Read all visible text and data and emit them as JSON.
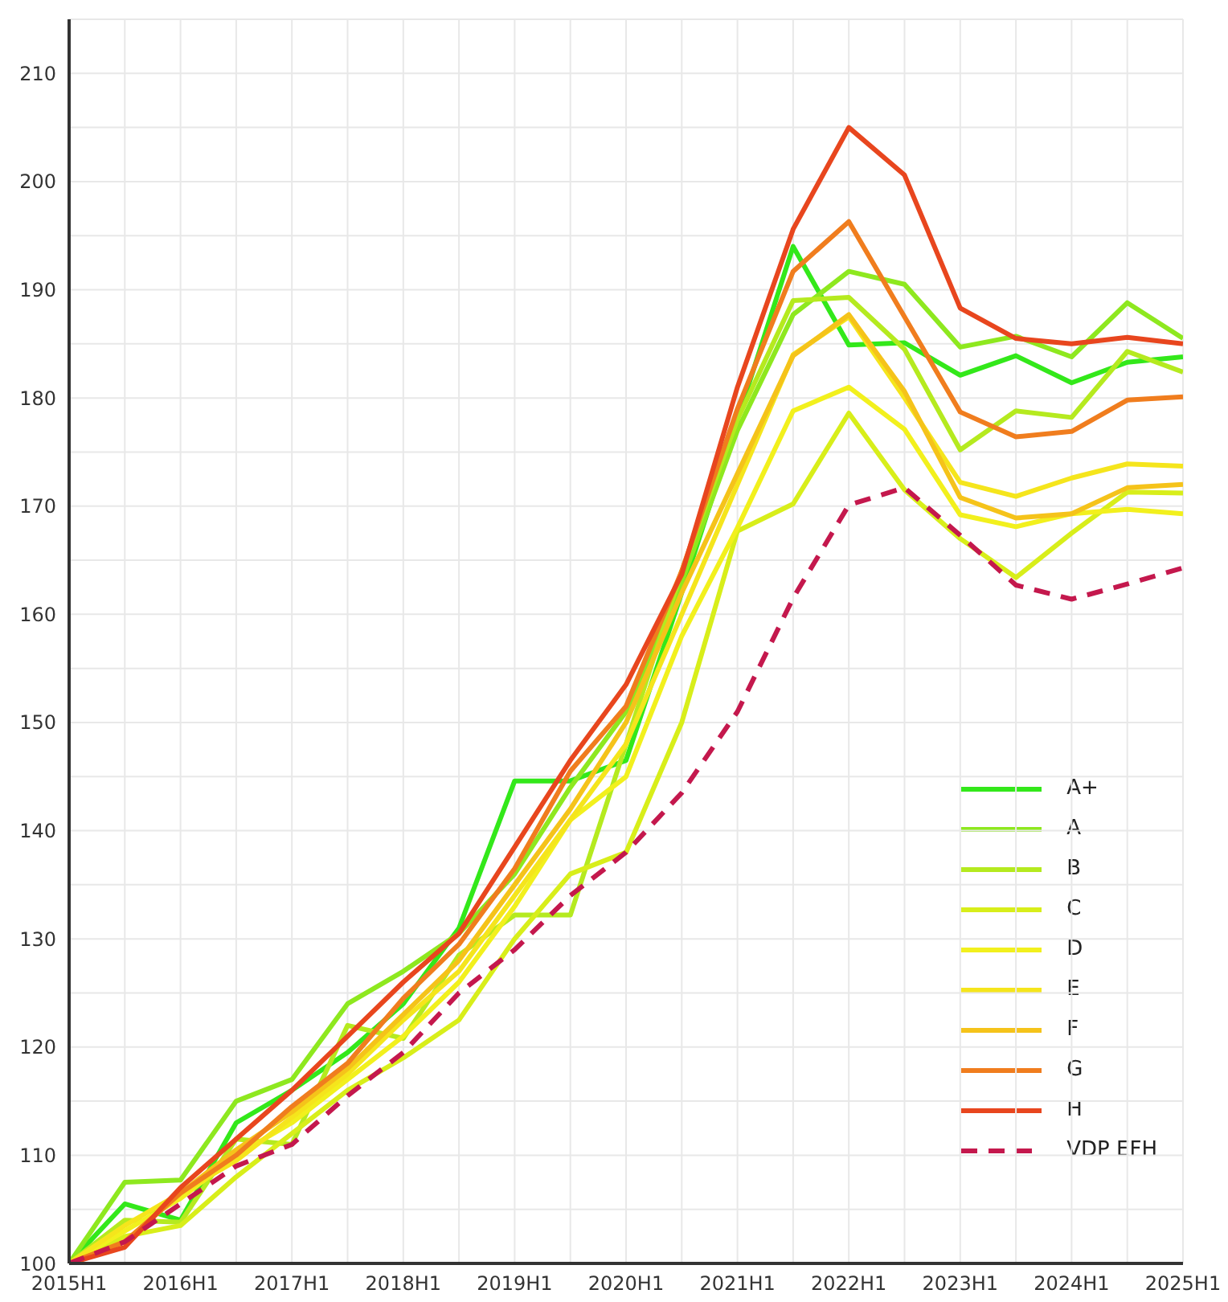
{
  "chart_data": {
    "type": "line",
    "categories": [
      "2015H1",
      null,
      "2016H1",
      null,
      "2017H1",
      null,
      "2018H1",
      null,
      "2019H1",
      null,
      "2020H1",
      null,
      "2021H1",
      null,
      "2022H1",
      null,
      "2023H1",
      null,
      "2024H1",
      null,
      "2025H1"
    ],
    "series": [
      {
        "name": "A+",
        "color": "#33e81a",
        "values": [
          100,
          105.5,
          104.0,
          113.0,
          116.0,
          119.5,
          124.0,
          131.0,
          144.6,
          144.6,
          146.5,
          162.0,
          178.0,
          194.0,
          184.9,
          185.1,
          182.1,
          183.9,
          181.4,
          183.3,
          183.8
        ]
      },
      {
        "name": "A",
        "color": "#8ee81f",
        "values": [
          100,
          107.5,
          107.7,
          115.0,
          117.0,
          124.0,
          127.0,
          130.5,
          136.0,
          144.0,
          151.0,
          163.0,
          177.0,
          187.7,
          191.7,
          190.5,
          184.7,
          185.7,
          183.8,
          188.8,
          185.5
        ]
      },
      {
        "name": "B",
        "color": "#b5ea1f",
        "values": [
          100,
          104.0,
          103.8,
          111.5,
          111.0,
          122.0,
          120.8,
          128.5,
          132.2,
          132.2,
          148.0,
          164.0,
          178.0,
          189.0,
          189.3,
          184.5,
          175.2,
          178.8,
          178.2,
          184.3,
          182.4
        ]
      },
      {
        "name": "C",
        "color": "#d8ee1a",
        "values": [
          100,
          102.5,
          103.5,
          108.0,
          112.0,
          116.0,
          119.0,
          122.5,
          130.0,
          136.0,
          138.0,
          150.0,
          167.7,
          170.2,
          178.6,
          171.5,
          167.0,
          163.4,
          167.5,
          171.3,
          171.2
        ]
      },
      {
        "name": "D",
        "color": "#f2f01d",
        "values": [
          100,
          103.0,
          106.0,
          110.0,
          113.0,
          117.0,
          121.0,
          126.0,
          133.0,
          141.0,
          145.0,
          158.0,
          168.0,
          178.8,
          181.0,
          177.1,
          169.2,
          168.1,
          169.3,
          169.7,
          169.3
        ]
      },
      {
        "name": "E",
        "color": "#f5e51c",
        "values": [
          100,
          103.5,
          106.5,
          109.5,
          113.5,
          117.5,
          122.5,
          127.0,
          134.0,
          141.0,
          148.0,
          160.0,
          172.0,
          184.0,
          187.5,
          180.0,
          172.2,
          170.9,
          172.6,
          173.9,
          173.7
        ]
      },
      {
        "name": "F",
        "color": "#f5c31a",
        "values": [
          100,
          102.0,
          106.5,
          110.5,
          114.0,
          118.0,
          123.0,
          128.0,
          135.0,
          142.0,
          150.0,
          162.0,
          173.0,
          183.9,
          187.7,
          180.6,
          170.8,
          168.9,
          169.3,
          171.7,
          172.0
        ]
      },
      {
        "name": "G",
        "color": "#f07d1e",
        "values": [
          100,
          102.0,
          106.5,
          110.0,
          114.5,
          118.5,
          124.5,
          129.5,
          136.5,
          145.5,
          151.5,
          164.0,
          179.0,
          191.7,
          196.3,
          187.5,
          178.7,
          176.4,
          176.9,
          179.8,
          180.1
        ]
      },
      {
        "name": "H",
        "color": "#e8461e",
        "values": [
          100,
          101.5,
          107.0,
          111.5,
          116.0,
          121.0,
          126.0,
          130.5,
          138.5,
          146.5,
          153.5,
          163.7,
          181.0,
          195.6,
          205.0,
          200.6,
          188.3,
          185.5,
          185.0,
          185.6,
          185.0
        ]
      },
      {
        "name": "VDP EFH",
        "color": "#c4184d",
        "line_style": "dashed",
        "values": [
          100,
          102.0,
          105.5,
          109.0,
          111.0,
          115.5,
          119.5,
          125.0,
          129.0,
          134.0,
          138.0,
          143.5,
          151.0,
          161.5,
          170.1,
          171.7,
          167.3,
          162.7,
          161.4,
          162.8,
          164.3
        ]
      }
    ],
    "ylim": [
      100,
      215
    ],
    "yticks": [
      100,
      {
        "value": 105,
        "label": null
      },
      110,
      {
        "value": 115,
        "label": null
      },
      120,
      {
        "value": 125,
        "label": null
      },
      130,
      {
        "value": 135,
        "label": null
      },
      140,
      {
        "value": 145,
        "label": null
      },
      150,
      {
        "value": 155,
        "label": null
      },
      160,
      {
        "value": 165,
        "label": null
      },
      170,
      {
        "value": 175,
        "label": null
      },
      180,
      {
        "value": 185,
        "label": null
      },
      190,
      {
        "value": 195,
        "label": null
      },
      200,
      {
        "value": 205,
        "label": null
      },
      210
    ],
    "grid": true,
    "legend": "bottom right",
    "line_style": "solid",
    "marker": "none"
  }
}
